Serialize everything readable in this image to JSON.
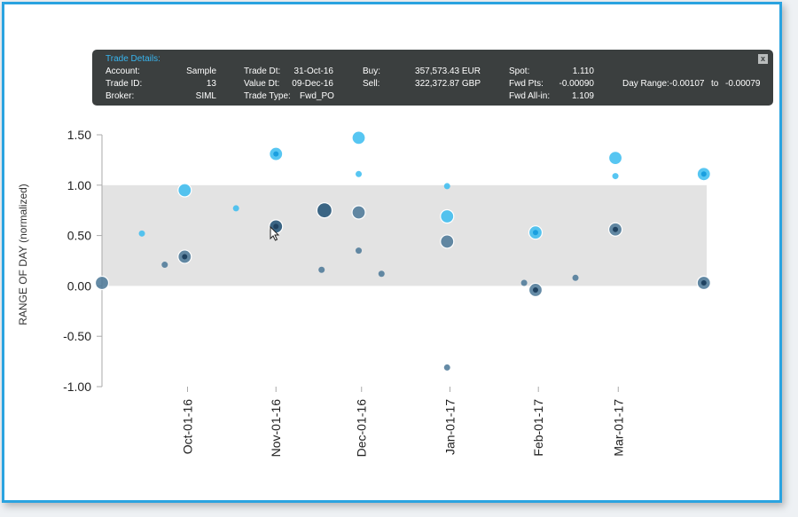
{
  "tooltip": {
    "title": "Trade Details:",
    "close_label": "x",
    "account_label": "Account:",
    "account_value": "Sample",
    "trade_id_label": "Trade ID:",
    "trade_id_value": "13",
    "broker_label": "Broker:",
    "broker_value": "SIML",
    "trade_dt_label": "Trade Dt:",
    "trade_dt_value": "31-Oct-16",
    "value_dt_label": "Value Dt:",
    "value_dt_value": "09-Dec-16",
    "trade_type_label": "Trade Type:",
    "trade_type_value": "Fwd_PO",
    "buy_label": "Buy:",
    "buy_value": "357,573.43 EUR",
    "sell_label": "Sell:",
    "sell_value": "322,372.87 GBP",
    "spot_label": "Spot:",
    "spot_value": "1.110",
    "fwd_pts_label": "Fwd Pts:",
    "fwd_pts_value": "-0.00090",
    "fwd_allin_label": "Fwd All-in:",
    "fwd_allin_value": "1.109",
    "day_range_label": "Day Range:",
    "day_range_low": "-0.00107",
    "day_range_to": "to",
    "day_range_high": "-0.00079"
  },
  "chart_data": {
    "type": "scatter",
    "title": "",
    "ylabel": "RANGE OF DAY (normalized)",
    "xlabel": "",
    "ylim": [
      -1.0,
      1.5
    ],
    "xlim": [
      "2016-09-01",
      "2017-04-01"
    ],
    "y_ticks": [
      "1.50",
      "1.00",
      "0.50",
      "0.00",
      "-0.50",
      "-1.00"
    ],
    "y_tick_values": [
      1.5,
      1.0,
      0.5,
      0.0,
      -0.5,
      -1.0
    ],
    "x_ticks": [
      "Oct-01-16",
      "Nov-01-16",
      "Dec-01-16",
      "Jan-01-17",
      "Feb-01-17",
      "Mar-01-17"
    ],
    "x_tick_values": [
      "2016-10-01",
      "2016-11-01",
      "2016-12-01",
      "2017-01-01",
      "2017-02-01",
      "2017-03-01"
    ],
    "band": {
      "from": 0.0,
      "to": 1.0,
      "color": "#e3e3e3"
    },
    "grid": false,
    "colors": {
      "light": "#39bcf0",
      "dark": "#4a7796",
      "darker": "#1d4f73",
      "axis": "#aaaaaa"
    },
    "points": [
      {
        "date": "2016-09-01",
        "y": 0.03,
        "size": "large",
        "tone": "dark"
      },
      {
        "date": "2016-09-15",
        "y": 0.52,
        "size": "small",
        "tone": "light"
      },
      {
        "date": "2016-09-23",
        "y": 0.21,
        "size": "small",
        "tone": "dark"
      },
      {
        "date": "2016-09-30",
        "y": 0.95,
        "size": "large",
        "tone": "light"
      },
      {
        "date": "2016-09-30",
        "y": 0.29,
        "size": "large",
        "tone": "dark",
        "core": true
      },
      {
        "date": "2016-10-18",
        "y": 0.77,
        "size": "small",
        "tone": "light"
      },
      {
        "date": "2016-11-01",
        "y": 1.31,
        "size": "large",
        "tone": "light",
        "core": true
      },
      {
        "date": "2016-11-01",
        "y": 0.59,
        "size": "large",
        "tone": "darker",
        "core": true
      },
      {
        "date": "2016-11-17",
        "y": 0.16,
        "size": "small",
        "tone": "dark"
      },
      {
        "date": "2016-11-18",
        "y": 0.75,
        "size": "xlarge",
        "tone": "darker"
      },
      {
        "date": "2016-11-30",
        "y": 1.47,
        "size": "large",
        "tone": "light"
      },
      {
        "date": "2016-11-30",
        "y": 1.11,
        "size": "small",
        "tone": "light"
      },
      {
        "date": "2016-11-30",
        "y": 0.73,
        "size": "large",
        "tone": "dark"
      },
      {
        "date": "2016-11-30",
        "y": 0.35,
        "size": "small",
        "tone": "dark"
      },
      {
        "date": "2016-12-08",
        "y": 0.12,
        "size": "small",
        "tone": "dark"
      },
      {
        "date": "2016-12-31",
        "y": 0.99,
        "size": "small",
        "tone": "light"
      },
      {
        "date": "2016-12-31",
        "y": 0.69,
        "size": "large",
        "tone": "light"
      },
      {
        "date": "2016-12-31",
        "y": 0.44,
        "size": "large",
        "tone": "dark"
      },
      {
        "date": "2016-12-31",
        "y": -0.81,
        "size": "small",
        "tone": "dark"
      },
      {
        "date": "2017-01-27",
        "y": 0.03,
        "size": "small",
        "tone": "dark"
      },
      {
        "date": "2017-01-31",
        "y": 0.53,
        "size": "large",
        "tone": "light",
        "core": true
      },
      {
        "date": "2017-01-31",
        "y": -0.04,
        "size": "large",
        "tone": "dark",
        "core": true
      },
      {
        "date": "2017-02-14",
        "y": 0.08,
        "size": "small",
        "tone": "dark"
      },
      {
        "date": "2017-02-28",
        "y": 1.27,
        "size": "large",
        "tone": "light"
      },
      {
        "date": "2017-02-28",
        "y": 1.09,
        "size": "small",
        "tone": "light"
      },
      {
        "date": "2017-02-28",
        "y": 0.56,
        "size": "large",
        "tone": "dark",
        "core": true
      },
      {
        "date": "2017-03-31",
        "y": 1.11,
        "size": "large",
        "tone": "light",
        "core": true
      },
      {
        "date": "2017-03-31",
        "y": 0.03,
        "size": "large",
        "tone": "dark",
        "core": true
      }
    ]
  }
}
